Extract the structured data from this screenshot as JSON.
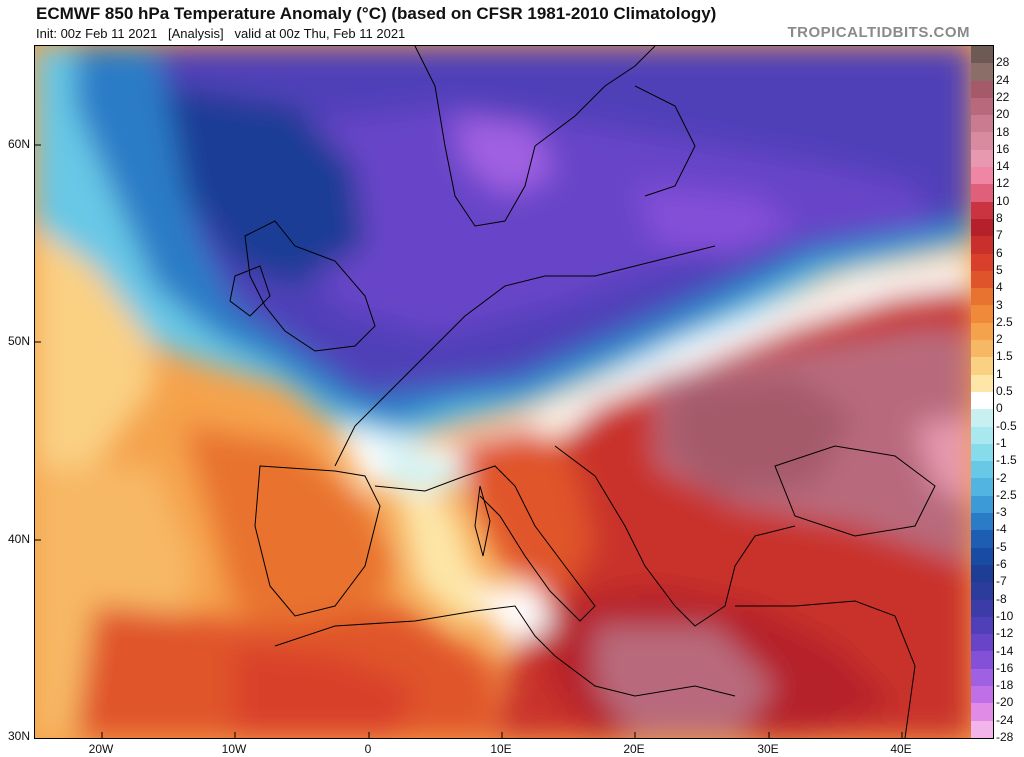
{
  "header": {
    "title": "ECMWF 850 hPa Temperature Anomaly (°C) (based on CFSR 1981-2010 Climatology)",
    "subtitle": "Init: 00z Feb 11 2021   [Analysis]   valid at 00z Thu, Feb 11 2021",
    "brand": "TROPICALTIDBITS.COM"
  },
  "axes": {
    "lat_labels": [
      "60N",
      "50N",
      "40N",
      "30N"
    ],
    "lon_labels": [
      "20W",
      "10W",
      "0",
      "10E",
      "20E",
      "30E",
      "40E"
    ]
  },
  "colorbar": {
    "labels": [
      "28",
      "24",
      "22",
      "20",
      "18",
      "16",
      "14",
      "12",
      "10",
      "8",
      "7",
      "6",
      "5",
      "4",
      "3",
      "2.5",
      "2",
      "1.5",
      "1",
      "0.5",
      "0",
      "-0.5",
      "-1",
      "-1.5",
      "-2",
      "-2.5",
      "-3",
      "-4",
      "-5",
      "-6",
      "-7",
      "-8",
      "-10",
      "-12",
      "-14",
      "-16",
      "-18",
      "-20",
      "-24",
      "-28"
    ],
    "colors": [
      "#6e5a54",
      "#8c6e68",
      "#a55a6a",
      "#b86a7c",
      "#c97c90",
      "#d88aa0",
      "#e699b0",
      "#ef86a4",
      "#e05f7a",
      "#cc3340",
      "#b5202a",
      "#c9302b",
      "#d9402c",
      "#e0542c",
      "#e8722f",
      "#ef8a3a",
      "#f5a24c",
      "#f7b865",
      "#fad083",
      "#fde6a8",
      "#ffffff",
      "#c8f0f0",
      "#a8e8ee",
      "#86dcea",
      "#68c8e6",
      "#52b4e0",
      "#3c9ad6",
      "#2a7cc6",
      "#1e5eb2",
      "#184ca2",
      "#1e3e96",
      "#2b3c9c",
      "#3c3ca8",
      "#5040b8",
      "#6844c8",
      "#8450d8",
      "#a060e2",
      "#c070e6",
      "#e08ce6",
      "#f2b4ea"
    ]
  }
}
